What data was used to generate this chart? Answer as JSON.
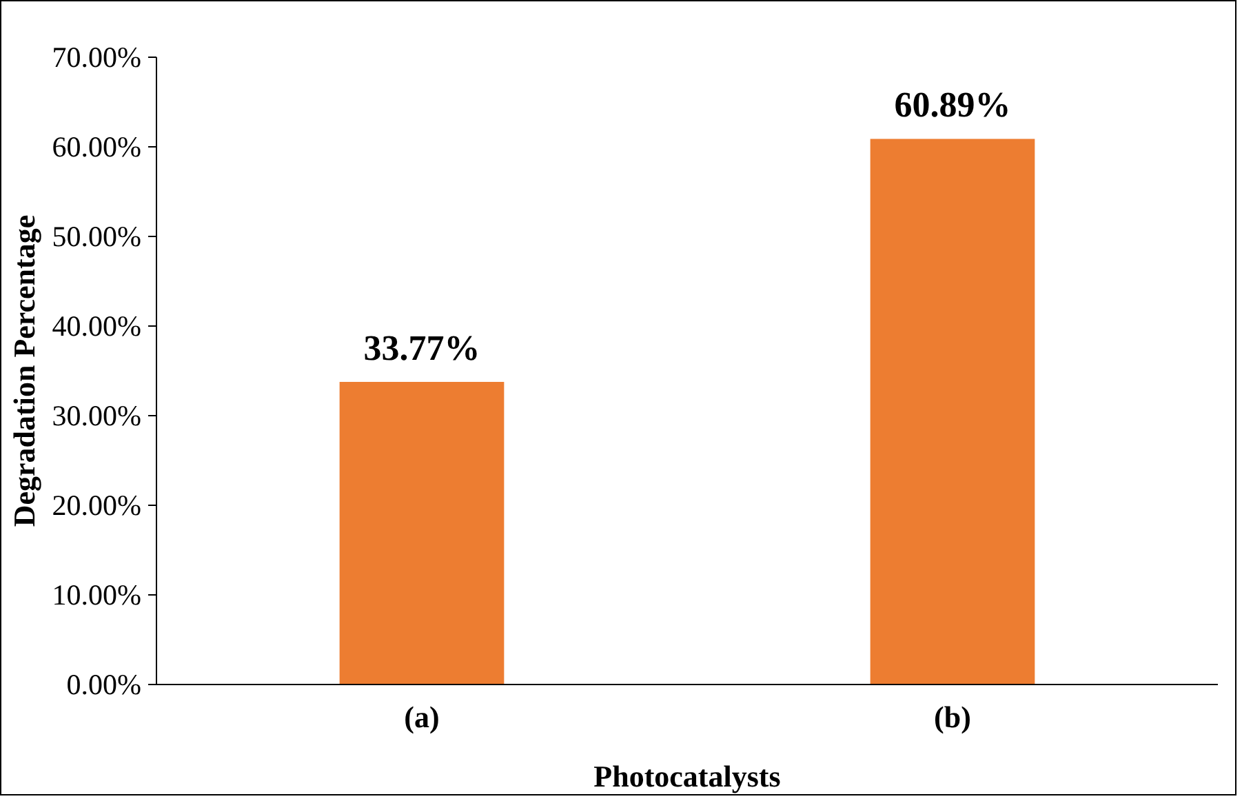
{
  "chart_data": {
    "type": "bar",
    "xlabel": "Photocatalysts",
    "ylabel": "Degradation Percentage",
    "categories": [
      "(a)",
      "(b)"
    ],
    "values": [
      33.77,
      60.89
    ],
    "value_labels": [
      "33.77%",
      "60.89%"
    ],
    "color": "#ed7d31",
    "ylim": [
      0,
      70
    ],
    "yticks": [
      {
        "value": 0,
        "label": "0.00%"
      },
      {
        "value": 10,
        "label": "10.00%"
      },
      {
        "value": 20,
        "label": "20.00%"
      },
      {
        "value": 30,
        "label": "30.00%"
      },
      {
        "value": 40,
        "label": "40.00%"
      },
      {
        "value": 50,
        "label": "50.00%"
      },
      {
        "value": 60,
        "label": "60.00%"
      },
      {
        "value": 70,
        "label": "70.00%"
      }
    ],
    "grid": false
  }
}
